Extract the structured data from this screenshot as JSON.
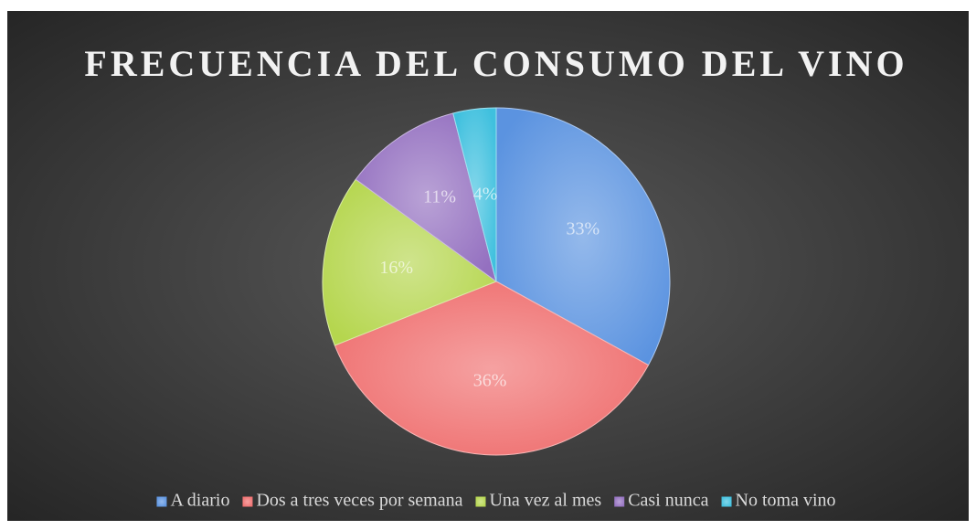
{
  "chart_data": {
    "type": "pie",
    "title": "FRECUENCIA DEL CONSUMO DEL VINO",
    "categories": [
      "A diario",
      "Dos a tres veces por semana",
      "Una vez al mes",
      "Casi nunca",
      "No toma vino"
    ],
    "values": [
      33,
      36,
      16,
      11,
      4
    ],
    "value_labels": [
      "33%",
      "36%",
      "16%",
      "11%",
      "4%"
    ],
    "colors": [
      "#5b93e0",
      "#ef6f6f",
      "#b5d64e",
      "#9470c0",
      "#3fc0de"
    ],
    "legend": "bottom"
  }
}
